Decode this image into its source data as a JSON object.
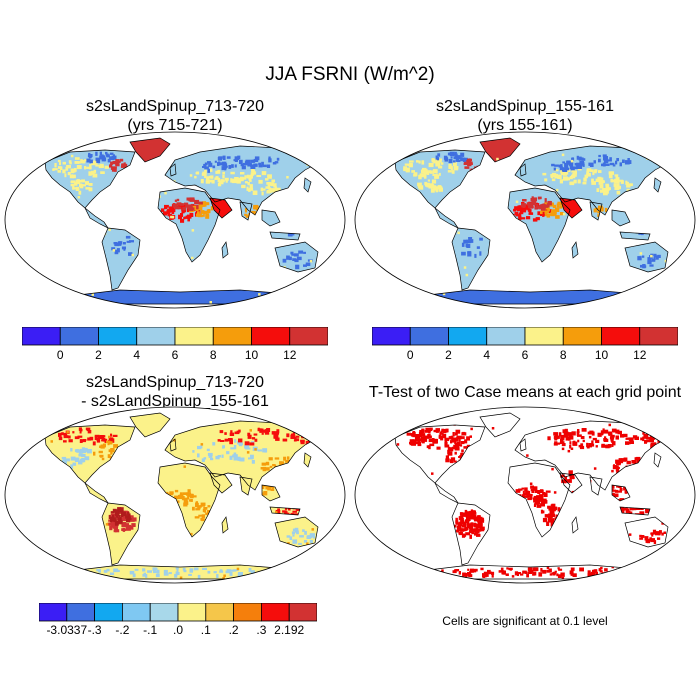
{
  "figure": {
    "title": "JJA FSRNI (W/m^2)"
  },
  "panels": [
    {
      "id": "panel-case1",
      "title_line1": "s2sLandSpinup_713-720",
      "title_line2": "(yrs 715-721)",
      "type": "mean"
    },
    {
      "id": "panel-case2",
      "title_line1": "s2sLandSpinup_155-161",
      "title_line2": "(yrs 155-161)",
      "type": "mean"
    },
    {
      "id": "panel-diff",
      "title_line1": "s2sLandSpinup_713-720",
      "title_line2": "- s2sLandSpinup_155-161",
      "type": "difference"
    },
    {
      "id": "panel-ttest",
      "title_line1": "T-Test of two Case means at each grid point",
      "title_line2": "",
      "type": "significance"
    }
  ],
  "colorbars": {
    "mean": {
      "colors": [
        "#3b1ef5",
        "#3f6fe0",
        "#12a8f0",
        "#9fd0ea",
        "#fbf28a",
        "#f59d0c",
        "#f50d0c",
        "#d23232"
      ],
      "labels": [
        "0",
        "2",
        "4",
        "6",
        "8",
        "10",
        "12"
      ]
    },
    "difference": {
      "colors": [
        "#3b1ef5",
        "#3f6fe0",
        "#12a8f0",
        "#7fc8f2",
        "#a8d8ea",
        "#fbf28a",
        "#f5c64a",
        "#f57f0c",
        "#f50d0c",
        "#d23232"
      ],
      "labels": [
        "-3.0337",
        "-.3",
        "-.2",
        "-.1",
        ".0",
        ".1",
        ".2",
        ".3",
        "2.192"
      ]
    }
  },
  "significance_note": "Cells are significant at 0.1 level",
  "map_colors": {
    "significant": "#ee0000",
    "land_outline": "#000000",
    "ocean": "#ffffff"
  }
}
